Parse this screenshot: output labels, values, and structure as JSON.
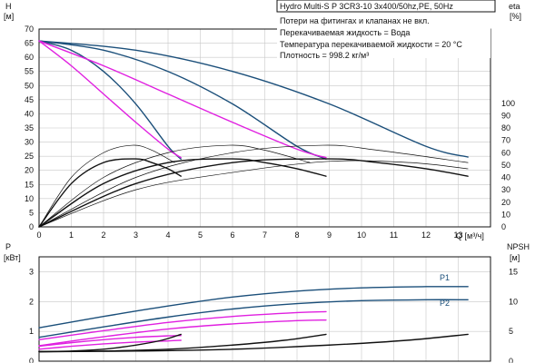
{
  "title": "Hydro Multi-S P 3CR3-10 3x400/50hz,PE, 50Hz",
  "notes": [
    "Потери на фитингах и клапанах не вкл.",
    "Перекачиваемая жидкость = Вода",
    "Температура перекачиваемой жидкости = 20 °C",
    "Плотность = 998.2 кг/м³"
  ],
  "colors": {
    "pump_curve": "#1b4f7a",
    "efficiency": "#111111",
    "nphs": "#111111",
    "power": "#e020e0",
    "grid": "#c8c8c8",
    "frame": "#111111"
  },
  "chart_data": [
    {
      "type": "line",
      "panel": "top",
      "xlabel": "Q [м³/ч]",
      "ylabel_left": "H",
      "ylabel_left_unit": "[м]",
      "ylabel_right": "eta",
      "ylabel_right_unit": "[%]",
      "xlim": [
        0,
        14
      ],
      "ylim_left": [
        0,
        70
      ],
      "ylim_right": [
        0,
        160
      ],
      "x_ticks": [
        0,
        1,
        2,
        3,
        4,
        5,
        6,
        7,
        8,
        9,
        10,
        11,
        12,
        13
      ],
      "y_left_ticks": [
        0,
        5,
        10,
        15,
        20,
        25,
        30,
        35,
        40,
        45,
        50,
        55,
        60,
        65,
        70
      ],
      "y_right_ticks": [
        0,
        10,
        20,
        30,
        40,
        50,
        60,
        70,
        80,
        90,
        100
      ],
      "series": [
        {
          "role": "head-1-pump",
          "axis": "left",
          "color": "pump_curve",
          "x": [
            0,
            1,
            2,
            3,
            4,
            4.4
          ],
          "y": [
            65.8,
            62.5,
            55,
            43.5,
            28.5,
            24
          ]
        },
        {
          "role": "head-2-pumps",
          "axis": "left",
          "color": "pump_curve",
          "x": [
            0,
            2,
            4,
            6,
            8,
            8.9
          ],
          "y": [
            65.8,
            62.5,
            55,
            43.5,
            28.5,
            24
          ]
        },
        {
          "role": "head-3-pumps",
          "axis": "left",
          "color": "pump_curve",
          "x": [
            0,
            3,
            6,
            9,
            12,
            13.3
          ],
          "y": [
            65.8,
            62.5,
            55,
            43.5,
            28.5,
            24.7
          ]
        },
        {
          "role": "head-reduced-1",
          "axis": "left",
          "color": "power",
          "x": [
            0,
            1,
            2,
            3,
            4,
            4.4
          ],
          "y": [
            65.8,
            57,
            47,
            37,
            27.5,
            24.5
          ]
        },
        {
          "role": "head-reduced-2",
          "axis": "left",
          "color": "power",
          "x": [
            0,
            2,
            4,
            6,
            8,
            8.9
          ],
          "y": [
            65.8,
            57,
            47,
            37,
            27.5,
            24.5
          ]
        },
        {
          "role": "eta-1-pump",
          "axis": "right",
          "color": "efficiency",
          "x": [
            0,
            1,
            2,
            3,
            3.5,
            4,
            4.4
          ],
          "y": [
            0,
            35,
            52,
            55,
            52,
            47,
            41
          ]
        },
        {
          "role": "eta-2-pumps",
          "axis": "right",
          "color": "efficiency",
          "x": [
            0,
            2,
            4,
            6,
            7,
            8,
            8.9
          ],
          "y": [
            0,
            35,
            52,
            55,
            52,
            47,
            41
          ]
        },
        {
          "role": "eta-3-pumps",
          "axis": "right",
          "color": "efficiency",
          "x": [
            0,
            3,
            6,
            9,
            10.5,
            12,
            13.3
          ],
          "y": [
            0,
            35,
            52,
            55,
            52,
            47,
            41
          ]
        },
        {
          "role": "eta-thin-1",
          "axis": "right",
          "color": "efficiency",
          "x": [
            0,
            1,
            2,
            2.9,
            3.5,
            4.2
          ],
          "y": [
            0,
            40,
            60,
            66,
            62,
            52
          ]
        },
        {
          "role": "eta-thin-2",
          "axis": "right",
          "color": "efficiency",
          "x": [
            0,
            2,
            4,
            5.9,
            7,
            8.4
          ],
          "y": [
            0,
            40,
            60,
            66,
            62,
            52
          ]
        },
        {
          "role": "eta-thin-3",
          "axis": "right",
          "color": "efficiency",
          "x": [
            0,
            3,
            6,
            8.8,
            10.5,
            13.3
          ],
          "y": [
            0,
            40,
            60,
            66,
            62,
            52
          ]
        },
        {
          "role": "eta-thin-4",
          "axis": "right",
          "color": "efficiency",
          "x": [
            0,
            3,
            6,
            9,
            11.5,
            13.3
          ],
          "y": [
            0,
            30,
            44,
            53,
            52,
            47
          ]
        }
      ]
    },
    {
      "type": "line",
      "panel": "bottom",
      "ylabel_left": "P",
      "ylabel_left_unit": "[кВт]",
      "ylabel_right": "NPSH",
      "ylabel_right_unit": "[м]",
      "xlim": [
        0,
        14
      ],
      "ylim_left": [
        0,
        3.5
      ],
      "ylim_right": [
        0,
        17.5
      ],
      "y_left_ticks": [
        0,
        1,
        2,
        3
      ],
      "y_right_ticks": [
        0,
        5,
        10,
        15
      ],
      "series": [
        {
          "name": "P1",
          "axis": "left",
          "color": "pump_curve",
          "x": [
            0,
            2,
            4,
            6,
            8,
            10,
            12,
            13.3
          ],
          "y": [
            1.12,
            1.5,
            1.85,
            2.15,
            2.35,
            2.46,
            2.5,
            2.5
          ]
        },
        {
          "name": "P2",
          "axis": "left",
          "color": "pump_curve",
          "x": [
            0,
            2,
            4,
            6,
            8,
            10,
            12,
            13.3
          ],
          "y": [
            0.8,
            1.15,
            1.48,
            1.75,
            1.93,
            2.03,
            2.06,
            2.06
          ]
        },
        {
          "role": "power-2-a",
          "axis": "left",
          "color": "power",
          "x": [
            0,
            2,
            4,
            6,
            8,
            8.9
          ],
          "y": [
            0.72,
            1.02,
            1.3,
            1.5,
            1.63,
            1.66
          ]
        },
        {
          "role": "power-2-b",
          "axis": "left",
          "color": "power",
          "x": [
            0,
            2,
            4,
            6,
            8,
            8.9
          ],
          "y": [
            0.52,
            0.82,
            1.08,
            1.25,
            1.36,
            1.38
          ]
        },
        {
          "role": "power-1-a",
          "axis": "left",
          "color": "power",
          "x": [
            0,
            1,
            2,
            3,
            4,
            4.4
          ],
          "y": [
            0.5,
            0.62,
            0.72,
            0.8,
            0.85,
            0.86
          ]
        },
        {
          "role": "power-1-b",
          "axis": "left",
          "color": "power",
          "x": [
            0,
            1,
            2,
            3,
            4,
            4.4
          ],
          "y": [
            0.4,
            0.5,
            0.58,
            0.64,
            0.68,
            0.7
          ]
        },
        {
          "role": "npsh-1-pump",
          "axis": "right",
          "color": "nphs",
          "x": [
            0,
            1,
            2,
            3,
            3.8,
            4.4
          ],
          "y": [
            1.6,
            1.7,
            2.0,
            2.7,
            3.5,
            4.5
          ]
        },
        {
          "role": "npsh-2-pumps",
          "axis": "right",
          "color": "nphs",
          "x": [
            0,
            2,
            4,
            6,
            7.6,
            8.9
          ],
          "y": [
            1.6,
            1.7,
            2.0,
            2.7,
            3.5,
            4.5
          ]
        },
        {
          "role": "npsh-3-pumps",
          "axis": "right",
          "color": "nphs",
          "x": [
            0,
            3,
            6,
            9,
            11.4,
            13.3
          ],
          "y": [
            1.6,
            1.7,
            2.0,
            2.7,
            3.5,
            4.5
          ]
        }
      ]
    }
  ]
}
